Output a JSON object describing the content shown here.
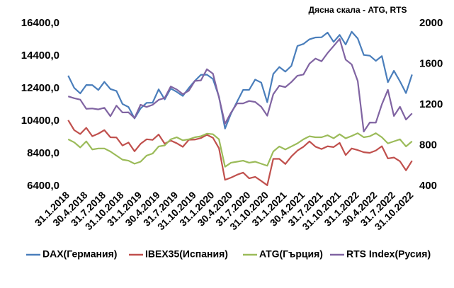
{
  "chart_data": {
    "type": "line",
    "annotation": "Дясна скала - ATG, RTS",
    "categories": [
      "31.1.2018",
      null,
      null,
      "30.4.2018",
      null,
      null,
      "31.7.2018",
      null,
      null,
      "31.10.2018",
      null,
      null,
      "31.1.2019",
      null,
      null,
      "30.4.2019",
      null,
      null,
      "31.7.2019",
      null,
      null,
      "31.10.2019",
      null,
      null,
      "31.1.2020",
      null,
      null,
      "30.4.2020",
      null,
      null,
      "31.7.2020",
      null,
      null,
      "31.10.2020",
      null,
      null,
      "31.1.2021",
      null,
      null,
      "30.4.2021",
      null,
      null,
      "31.7.2021",
      null,
      null,
      "31.10.2021",
      null,
      null,
      "31.1.2022",
      null,
      null,
      "30.4.2022",
      null,
      null,
      "31.7.2022",
      null,
      null,
      "31.10.2022"
    ],
    "series": [
      {
        "name": "DAX(Германия)",
        "color": "#4a7ebb",
        "axis": "y",
        "values": [
          13189,
          12435,
          12097,
          12612,
          12605,
          12306,
          12806,
          12364,
          12247,
          11447,
          11257,
          10559,
          11173,
          11516,
          11526,
          12344,
          11727,
          12399,
          12189,
          11939,
          12428,
          12867,
          13236,
          13249,
          12981,
          11890,
          9935,
          10862,
          11586,
          12311,
          12313,
          12945,
          12761,
          11556,
          13291,
          13719,
          13433,
          13786,
          15008,
          15136,
          15421,
          15531,
          15544,
          15835,
          15261,
          15689,
          15100,
          15885,
          15471,
          14461,
          14415,
          14098,
          14388,
          12784,
          13484,
          12835,
          12114,
          13254
        ]
      },
      {
        "name": "IBEX35(Испания)",
        "color": "#c0504d",
        "axis": "y",
        "values": [
          10451,
          9840,
          9600,
          9981,
          9466,
          9623,
          9840,
          9399,
          9389,
          8894,
          9077,
          8540,
          8996,
          9277,
          9240,
          9571,
          9004,
          9199,
          9033,
          8813,
          9245,
          9258,
          9352,
          9549,
          9367,
          8723,
          6785,
          6922,
          7097,
          7231,
          6877,
          6970,
          6717,
          6452,
          8077,
          8074,
          7758,
          8225,
          8580,
          8815,
          9148,
          8821,
          8676,
          8846,
          8796,
          9058,
          8305,
          8714,
          8612,
          8482,
          8445,
          8584,
          8852,
          8099,
          8156,
          7925,
          7367,
          7956
        ]
      },
      {
        "name": "ATG(Гърция)",
        "color": "#9bbb59",
        "axis": "y2",
        "values": [
          860,
          830,
          780,
          840,
          760,
          770,
          770,
          740,
          700,
          660,
          650,
          620,
          640,
          700,
          720,
          790,
          800,
          860,
          880,
          850,
          860,
          880,
          890,
          916,
          910,
          860,
          590,
          630,
          640,
          650,
          630,
          640,
          620,
          600,
          740,
          790,
          760,
          790,
          820,
          860,
          890,
          880,
          880,
          900,
          870,
          910,
          870,
          893,
          920,
          880,
          890,
          920,
          880,
          820,
          840,
          860,
          790,
          840
        ]
      },
      {
        "name": "RTS Index(Русия)",
        "color": "#8064a2",
        "axis": "y2",
        "values": [
          1282,
          1264,
          1250,
          1160,
          1163,
          1154,
          1170,
          1087,
          1191,
          1124,
          1125,
          1069,
          1200,
          1178,
          1199,
          1248,
          1266,
          1379,
          1350,
          1304,
          1338,
          1434,
          1439,
          1549,
          1505,
          1271,
          1013,
          1123,
          1213,
          1213,
          1237,
          1227,
          1180,
          1092,
          1303,
          1387,
          1373,
          1423,
          1485,
          1497,
          1604,
          1654,
          1627,
          1708,
          1777,
          1847,
          1643,
          1596,
          1433,
          936,
          1025,
          1024,
          1204,
          1346,
          1089,
          1180,
          1054,
          1115
        ]
      }
    ],
    "ylim": [
      6400,
      16400
    ],
    "yticks": [
      {
        "value": 6400,
        "label": "6400,0"
      },
      {
        "value": 8400,
        "label": "8400,0"
      },
      {
        "value": 10400,
        "label": "10400,0"
      },
      {
        "value": 12400,
        "label": "12400,0"
      },
      {
        "value": 14400,
        "label": "14400,0"
      },
      {
        "value": 16400,
        "label": "16400,0"
      }
    ],
    "y2lim": [
      400,
      2000
    ],
    "y2ticks": [
      400,
      800,
      1200,
      1600,
      2000
    ],
    "grid": false,
    "legend": "bottom"
  }
}
